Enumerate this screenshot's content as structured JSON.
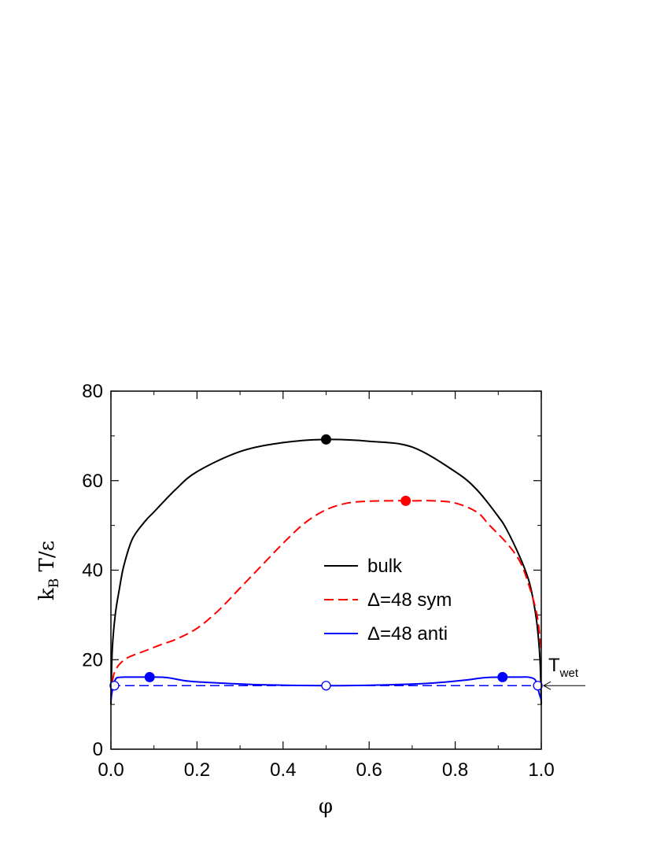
{
  "chart_data": {
    "type": "line",
    "xlabel": "φ",
    "ylabel_main": "k",
    "ylabel_sub": "B",
    "ylabel_rest": " T/ε",
    "xlim": [
      0.0,
      1.0
    ],
    "ylim": [
      0,
      80
    ],
    "x_ticks": [
      "0.0",
      "0.2",
      "0.4",
      "0.6",
      "0.8",
      "1.0"
    ],
    "y_ticks": [
      "0",
      "20",
      "40",
      "60",
      "80"
    ],
    "grid": false,
    "legend_position": "center-right",
    "series": [
      {
        "name": "bulk",
        "color": "#000000",
        "dash": "solid",
        "x": [
          0.0,
          0.003,
          0.01,
          0.02,
          0.03,
          0.05,
          0.08,
          0.1,
          0.15,
          0.2,
          0.3,
          0.4,
          0.5,
          0.6,
          0.7,
          0.8,
          0.85,
          0.9,
          0.92,
          0.95,
          0.97,
          0.98,
          0.99,
          0.997,
          1.0
        ],
        "y": [
          10,
          22,
          30,
          36,
          41,
          47,
          51,
          53,
          58,
          62,
          66.5,
          68.5,
          69.2,
          68.8,
          67.5,
          62,
          58,
          52,
          49,
          43,
          38,
          34,
          28,
          20,
          10
        ]
      },
      {
        "name": "Δ=48 sym",
        "color": "#ff0000",
        "dash": "dashed",
        "x": [
          0.0,
          0.005,
          0.01,
          0.02,
          0.04,
          0.08,
          0.12,
          0.15,
          0.2,
          0.25,
          0.3,
          0.35,
          0.4,
          0.45,
          0.5,
          0.55,
          0.6,
          0.65,
          0.7,
          0.75,
          0.8,
          0.85,
          0.88,
          0.92,
          0.95,
          0.97,
          0.99,
          1.0
        ],
        "y": [
          12,
          16,
          17.5,
          19,
          20.5,
          22,
          23.5,
          24.5,
          27,
          31,
          36,
          41,
          46,
          50.5,
          53.5,
          55,
          55.4,
          55.5,
          55.5,
          55.5,
          55,
          53,
          50,
          46,
          42,
          37,
          30,
          22
        ]
      },
      {
        "name": "Δ=48 anti",
        "color": "#0000ff",
        "dash": "solid",
        "x": [
          0.0,
          0.005,
          0.01,
          0.015,
          0.03,
          0.05,
          0.09,
          0.13,
          0.18,
          0.25,
          0.35,
          0.5,
          0.65,
          0.75,
          0.82,
          0.87,
          0.91,
          0.95,
          0.97,
          0.985,
          0.99,
          0.995,
          1.0
        ],
        "y": [
          11,
          14.2,
          15.5,
          16,
          16.1,
          16.1,
          16.1,
          16.0,
          15.2,
          14.8,
          14.4,
          14.2,
          14.4,
          14.8,
          15.4,
          16.0,
          16.1,
          16.1,
          16.1,
          15.6,
          14.2,
          12.5,
          11
        ]
      }
    ],
    "reference_line": {
      "y": 14.2,
      "color": "#0000ff",
      "dash": "dashed",
      "x_from": 0.0,
      "x_to": 1.0
    },
    "critical_points": [
      {
        "x": 0.5,
        "y": 69.2,
        "color": "#000000",
        "fill": "filled"
      },
      {
        "x": 0.685,
        "y": 55.5,
        "color": "#ff0000",
        "fill": "filled"
      },
      {
        "x": 0.09,
        "y": 16.1,
        "color": "#0000ff",
        "fill": "filled"
      },
      {
        "x": 0.91,
        "y": 16.1,
        "color": "#0000ff",
        "fill": "filled"
      },
      {
        "x": 0.008,
        "y": 14.2,
        "color": "#0000ff",
        "fill": "open"
      },
      {
        "x": 0.5,
        "y": 14.2,
        "color": "#0000ff",
        "fill": "open"
      },
      {
        "x": 0.992,
        "y": 14.2,
        "color": "#0000ff",
        "fill": "open"
      }
    ],
    "annotation": {
      "main": "T",
      "sub": "wet",
      "y": 14.2
    }
  }
}
